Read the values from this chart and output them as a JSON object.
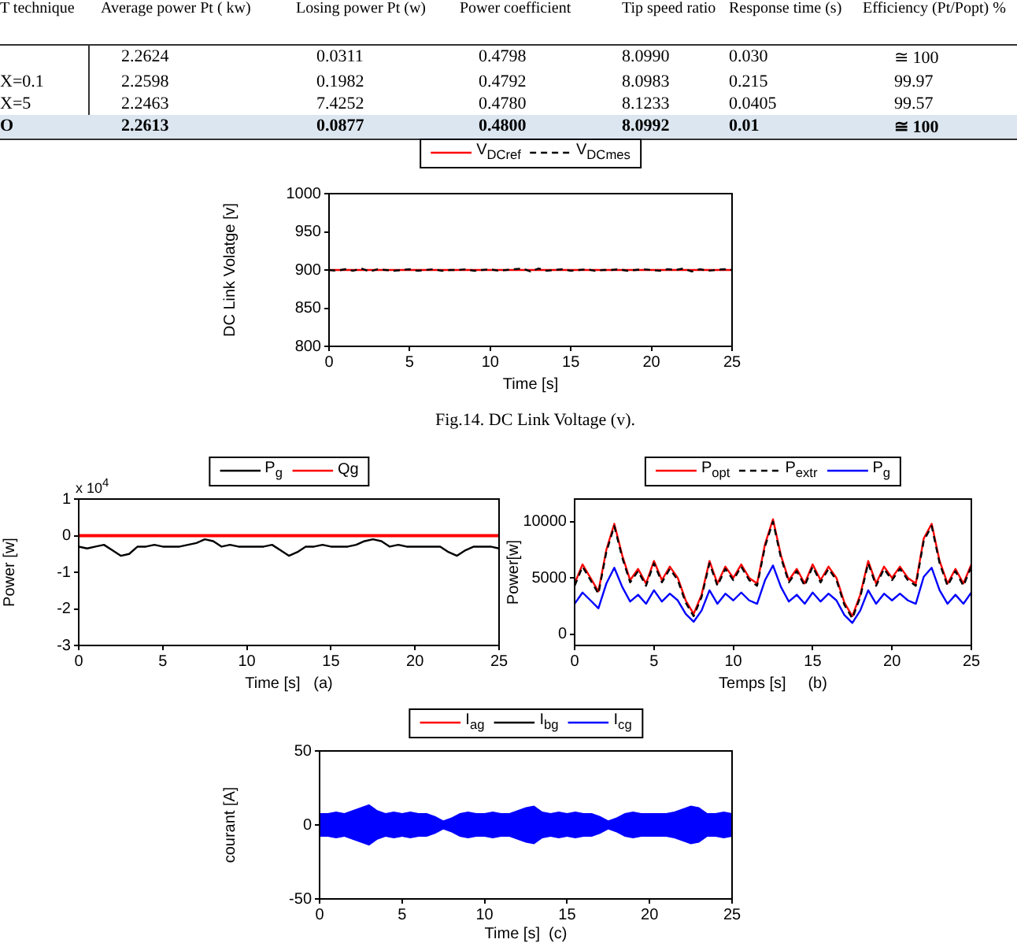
{
  "chart_data": [
    {
      "type": "other",
      "categories": [
        "T technique",
        "Average power Pt ( kw)",
        "Losing power Pt (w)",
        "Power coefficient",
        "Tip speed ratio",
        "Response time (s)",
        "Efficiency (Pt/Popt) %"
      ],
      "y_categories": [
        null,
        "X=0.1",
        "X=5",
        "O"
      ],
      "cell_labels": [
        [
          "2.2624",
          "0.0311",
          "0.4798",
          "8.0990",
          "0.030",
          "≅ 100"
        ],
        [
          "2.2598",
          "0.1982",
          "0.4792",
          "8.0983",
          "0.215",
          "99.97"
        ],
        [
          "2.2463",
          "7.4252",
          "0.4780",
          "8.1233",
          "0.0405",
          "99.57"
        ],
        [
          "2.2613",
          "0.0877",
          "0.4800",
          "8.0992",
          "0.01",
          "≅ 100"
        ]
      ]
    },
    {
      "type": "line",
      "xlabel": "Time [s]",
      "ylabel": "DC Link Volatge [v]",
      "annotations": [
        "Fig.14. DC Link Voltage (v)."
      ],
      "legend": "top",
      "xlim": [
        0,
        25
      ],
      "xticks": [
        0,
        5,
        10,
        15,
        20,
        25
      ],
      "ylim": [
        800,
        1000
      ],
      "yticks": [
        800,
        850,
        900,
        950,
        1000
      ],
      "x": [
        0,
        0.5,
        1,
        1.5,
        2,
        2.5,
        3,
        3.5,
        4,
        4.5,
        5,
        5.5,
        6,
        6.5,
        7,
        7.5,
        8,
        8.5,
        9,
        9.5,
        10,
        10.5,
        11,
        11.5,
        12,
        12.5,
        13,
        13.5,
        14,
        14.5,
        15,
        15.5,
        16,
        16.5,
        17,
        17.5,
        18,
        18.5,
        19,
        19.5,
        20,
        20.5,
        21,
        21.5,
        22,
        22.5,
        23,
        23.5,
        24,
        24.5,
        25
      ],
      "series": [
        {
          "name": "V$_{DCref}$",
          "color": "#ff0000",
          "line_style": "solid",
          "values": [
            900,
            900,
            900,
            900,
            900,
            900,
            900,
            900,
            900,
            900,
            900,
            900,
            900,
            900,
            900,
            900,
            900,
            900,
            900,
            900,
            900,
            900,
            900,
            900,
            900,
            900,
            900,
            900,
            900,
            900,
            900,
            900,
            900,
            900,
            900,
            900,
            900,
            900,
            900,
            900,
            900,
            900,
            900,
            900,
            900,
            900,
            900,
            900,
            900,
            900,
            900
          ]
        },
        {
          "name": "V$_{DCmes}$",
          "color": "#000000",
          "line_style": "dashed",
          "values": [
            900,
            899,
            901,
            899,
            902,
            898,
            901,
            900,
            899,
            900,
            901,
            899,
            900,
            901,
            899,
            900,
            900,
            901,
            899,
            900,
            901,
            899,
            900,
            901,
            902,
            898,
            902,
            899,
            900,
            901,
            899,
            900,
            901,
            899,
            900,
            900,
            901,
            899,
            900,
            901,
            900,
            899,
            901,
            900,
            902,
            898,
            901,
            899,
            900,
            901,
            900
          ]
        }
      ]
    },
    {
      "type": "line",
      "xlabel": "Time [s]   (a)",
      "ylabel": "Power [w]",
      "annotations": [
        "x 10$^{4}$"
      ],
      "legend": "top",
      "xlim": [
        0,
        25
      ],
      "xticks": [
        0,
        5,
        10,
        15,
        20,
        25
      ],
      "ylim": [
        -3,
        1
      ],
      "yticks": [
        -3,
        -2,
        -1,
        0,
        1
      ],
      "x": [
        0,
        0.5,
        1,
        1.5,
        2,
        2.5,
        3,
        3.5,
        4,
        4.5,
        5,
        5.5,
        6,
        6.5,
        7,
        7.5,
        8,
        8.5,
        9,
        9.5,
        10,
        10.5,
        11,
        11.5,
        12,
        12.5,
        13,
        13.5,
        14,
        14.5,
        15,
        15.5,
        16,
        16.5,
        17,
        17.5,
        18,
        18.5,
        19,
        19.5,
        20,
        20.5,
        21,
        21.5,
        22,
        22.5,
        23,
        23.5,
        24,
        24.5,
        25
      ],
      "series": [
        {
          "name": "P$_{g}$",
          "color": "#000000",
          "line_style": "solid",
          "values": [
            -0.3,
            -0.35,
            -0.3,
            -0.25,
            -0.4,
            -0.55,
            -0.5,
            -0.3,
            -0.3,
            -0.25,
            -0.3,
            -0.3,
            -0.3,
            -0.25,
            -0.2,
            -0.1,
            -0.15,
            -0.3,
            -0.25,
            -0.3,
            -0.3,
            -0.3,
            -0.3,
            -0.25,
            -0.4,
            -0.55,
            -0.45,
            -0.3,
            -0.3,
            -0.25,
            -0.3,
            -0.3,
            -0.3,
            -0.25,
            -0.15,
            -0.1,
            -0.15,
            -0.3,
            -0.25,
            -0.3,
            -0.3,
            -0.3,
            -0.3,
            -0.3,
            -0.45,
            -0.55,
            -0.4,
            -0.3,
            -0.3,
            -0.3,
            -0.35
          ]
        },
        {
          "name": "Qg",
          "color": "#ff0000",
          "line_style": "solid",
          "values": [
            0,
            0,
            0,
            0,
            0,
            0,
            0,
            0,
            0,
            0,
            0,
            0,
            0,
            0,
            0,
            0,
            0,
            0,
            0,
            0,
            0,
            0,
            0,
            0,
            0,
            0,
            0,
            0,
            0,
            0,
            0,
            0,
            0,
            0,
            0,
            0,
            0,
            0,
            0,
            0,
            0,
            0,
            0,
            0,
            0,
            0,
            0,
            0,
            0,
            0,
            0
          ]
        }
      ]
    },
    {
      "type": "line",
      "xlabel": "Temps [s]     (b)",
      "ylabel": "Power[w]",
      "legend": "top",
      "xlim": [
        0,
        25
      ],
      "xticks": [
        0,
        5,
        10,
        15,
        20,
        25
      ],
      "ylim": [
        -1000,
        12000
      ],
      "yticks": [
        0,
        5000,
        10000
      ],
      "x": [
        0,
        0.5,
        1,
        1.5,
        2,
        2.5,
        3,
        3.5,
        4,
        4.5,
        5,
        5.5,
        6,
        6.5,
        7,
        7.5,
        8,
        8.5,
        9,
        9.5,
        10,
        10.5,
        11,
        11.5,
        12,
        12.5,
        13,
        13.5,
        14,
        14.5,
        15,
        15.5,
        16,
        16.5,
        17,
        17.5,
        18,
        18.5,
        19,
        19.5,
        20,
        20.5,
        21,
        21.5,
        22,
        22.5,
        23,
        23.5,
        24,
        24.5,
        25
      ],
      "series": [
        {
          "name": "P$_{opt}$",
          "color": "#ff0000",
          "line_style": "solid",
          "values": [
            4500,
            6200,
            5000,
            3800,
            7500,
            9800,
            7000,
            4800,
            5800,
            4500,
            6500,
            4800,
            6000,
            5000,
            3000,
            1800,
            3500,
            6500,
            4500,
            6000,
            5000,
            6200,
            5000,
            4500,
            8000,
            10200,
            7000,
            4800,
            5800,
            4500,
            6200,
            4800,
            6000,
            5000,
            2800,
            1600,
            3500,
            6500,
            4500,
            6000,
            5000,
            6000,
            5000,
            4500,
            8500,
            9800,
            6500,
            4500,
            5800,
            4500,
            6200
          ]
        },
        {
          "name": "P$_{extr}$",
          "color": "#000000",
          "line_style": "dashed",
          "values": [
            4300,
            6000,
            4800,
            3600,
            7300,
            9600,
            6800,
            4600,
            5600,
            4300,
            6300,
            4600,
            5800,
            4800,
            2800,
            1600,
            3300,
            6300,
            4300,
            5800,
            4800,
            6000,
            4800,
            4300,
            7800,
            10000,
            6800,
            4600,
            5600,
            4300,
            6000,
            4600,
            5800,
            4800,
            2600,
            1400,
            3300,
            6300,
            4300,
            5800,
            4800,
            5800,
            4800,
            4300,
            8300,
            9600,
            6300,
            4300,
            5600,
            4300,
            6000
          ]
        },
        {
          "name": "P$_{g}$",
          "color": "#0000ff",
          "line_style": "solid",
          "values": [
            2700,
            3700,
            3000,
            2300,
            4500,
            5900,
            4200,
            2900,
            3500,
            2700,
            3900,
            2900,
            3600,
            3000,
            1800,
            1100,
            2100,
            3900,
            2700,
            3600,
            3000,
            3700,
            3000,
            2700,
            4800,
            6100,
            4200,
            2900,
            3500,
            2700,
            3700,
            2900,
            3600,
            3000,
            1700,
            1000,
            2100,
            3900,
            2700,
            3600,
            3000,
            3600,
            3000,
            2700,
            5100,
            5900,
            3900,
            2700,
            3500,
            2700,
            3700
          ]
        }
      ]
    },
    {
      "type": "line",
      "xlabel": "Time [s]  (c)",
      "ylabel": "courant [A]",
      "legend": "top",
      "xlim": [
        0,
        25
      ],
      "xticks": [
        0,
        5,
        10,
        15,
        20,
        25
      ],
      "ylim": [
        -50,
        50
      ],
      "yticks": [
        -50,
        0,
        50
      ],
      "x": [
        0,
        0.5,
        1,
        1.5,
        2,
        2.5,
        3,
        3.5,
        4,
        4.5,
        5,
        5.5,
        6,
        6.5,
        7,
        7.5,
        8,
        8.5,
        9,
        9.5,
        10,
        10.5,
        11,
        11.5,
        12,
        12.5,
        13,
        13.5,
        14,
        14.5,
        15,
        15.5,
        16,
        16.5,
        17,
        17.5,
        18,
        18.5,
        19,
        19.5,
        20,
        20.5,
        21,
        21.5,
        22,
        22.5,
        23,
        23.5,
        24,
        24.5,
        25
      ],
      "series": [
        {
          "name": "I$_{ag}$",
          "color": "#ff0000",
          "line_style": "solid",
          "values": [
            null,
            null,
            null,
            null,
            null,
            null,
            null,
            null,
            null,
            null,
            null,
            null,
            null,
            null,
            null,
            null,
            null,
            null,
            null,
            null,
            null,
            null,
            null,
            null,
            null,
            null,
            null,
            null,
            null,
            null,
            null,
            null,
            null,
            null,
            null,
            null,
            null,
            null,
            null,
            null,
            null,
            null,
            null,
            null,
            null,
            null,
            null,
            null,
            null,
            null,
            null
          ]
        },
        {
          "name": "I$_{bg}$",
          "color": "#000000",
          "line_style": "solid",
          "values": [
            null,
            null,
            null,
            null,
            null,
            null,
            null,
            null,
            null,
            null,
            null,
            null,
            null,
            null,
            null,
            null,
            null,
            null,
            null,
            null,
            null,
            null,
            null,
            null,
            null,
            null,
            null,
            null,
            null,
            null,
            null,
            null,
            null,
            null,
            null,
            null,
            null,
            null,
            null,
            null,
            null,
            null,
            null,
            null,
            null,
            null,
            null,
            null,
            null,
            null,
            null
          ]
        },
        {
          "name": "I$_{cg}$",
          "color": "#0000ff",
          "line_style": "solid",
          "values": [
            null,
            null,
            null,
            null,
            null,
            null,
            null,
            null,
            null,
            null,
            null,
            null,
            null,
            null,
            null,
            null,
            null,
            null,
            null,
            null,
            null,
            null,
            null,
            null,
            null,
            null,
            null,
            null,
            null,
            null,
            null,
            null,
            null,
            null,
            null,
            null,
            null,
            null,
            null,
            null,
            null,
            null,
            null,
            null,
            null,
            null,
            null,
            null,
            null,
            null,
            null
          ],
          "upper": [
            8,
            8,
            9,
            8,
            10,
            12,
            14,
            10,
            8,
            9,
            8,
            9,
            8,
            8,
            6,
            3,
            5,
            8,
            9,
            8,
            8,
            9,
            8,
            8,
            10,
            12,
            13,
            9,
            8,
            9,
            8,
            9,
            8,
            8,
            6,
            3,
            5,
            8,
            9,
            8,
            8,
            8,
            8,
            9,
            11,
            13,
            12,
            8,
            8,
            9,
            8
          ],
          "lower": [
            -8,
            -8,
            -9,
            -8,
            -10,
            -12,
            -14,
            -10,
            -8,
            -9,
            -8,
            -9,
            -8,
            -8,
            -6,
            -3,
            -5,
            -8,
            -9,
            -8,
            -8,
            -9,
            -8,
            -8,
            -10,
            -12,
            -13,
            -9,
            -8,
            -9,
            -8,
            -9,
            -8,
            -8,
            -6,
            -3,
            -5,
            -8,
            -9,
            -8,
            -8,
            -8,
            -8,
            -9,
            -11,
            -13,
            -12,
            -8,
            -8,
            -9,
            -8
          ]
        }
      ]
    }
  ]
}
